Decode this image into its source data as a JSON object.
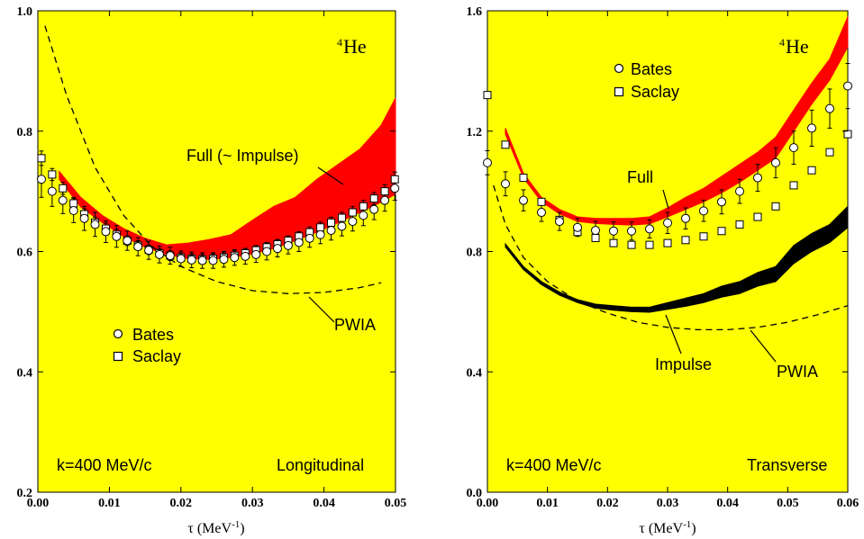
{
  "colors": {
    "background": "#ffff00",
    "band": "#ff0000",
    "impulse": "#000000",
    "text": "#000000"
  },
  "chart_data": [
    {
      "type": "scatter",
      "panel": "left",
      "xlim": [
        0,
        0.05
      ],
      "ylim": [
        0.2,
        1.0
      ],
      "xticks": [
        "0.00",
        "0.01",
        "0.02",
        "0.03",
        "0.04",
        "0.05"
      ],
      "yticks": [
        "0.2",
        "0.4",
        "0.6",
        "0.8",
        "1.0"
      ],
      "xlabel_main": "τ (MeV",
      "xlabel_sup": "-1",
      "xlabel_end": ")",
      "nucleus": {
        "mass": "4",
        "symbol": "He"
      },
      "kinematics_label": "k=400 MeV/c",
      "response_label": "Longitudinal",
      "legend": {
        "bates": "Bates",
        "saclay": "Saclay"
      },
      "band_label": "Full (~ Impulse)",
      "pwia_label": "PWIA",
      "full_band": {
        "x": [
          0.003,
          0.006,
          0.009,
          0.012,
          0.015,
          0.018,
          0.021,
          0.024,
          0.027,
          0.03,
          0.033,
          0.036,
          0.039,
          0.042,
          0.045,
          0.048,
          0.05
        ],
        "upper": [
          0.733,
          0.69,
          0.66,
          0.638,
          0.622,
          0.611,
          0.614,
          0.62,
          0.628,
          0.652,
          0.675,
          0.69,
          0.72,
          0.745,
          0.77,
          0.81,
          0.855
        ],
        "lower": [
          0.72,
          0.674,
          0.648,
          0.625,
          0.607,
          0.595,
          0.588,
          0.587,
          0.59,
          0.596,
          0.605,
          0.618,
          0.632,
          0.648,
          0.665,
          0.682,
          0.695
        ]
      },
      "pwia": {
        "x": [
          0.001,
          0.004,
          0.008,
          0.012,
          0.016,
          0.02,
          0.025,
          0.03,
          0.035,
          0.04,
          0.045,
          0.048
        ],
        "y": [
          0.975,
          0.86,
          0.74,
          0.66,
          0.608,
          0.575,
          0.55,
          0.535,
          0.53,
          0.532,
          0.54,
          0.548
        ]
      },
      "bates": {
        "x": [
          0.0005,
          0.002,
          0.0035,
          0.005,
          0.0065,
          0.008,
          0.0095,
          0.011,
          0.0125,
          0.014,
          0.0155,
          0.017,
          0.0185,
          0.02,
          0.0215,
          0.023,
          0.0245,
          0.026,
          0.0275,
          0.029,
          0.0305,
          0.032,
          0.0335,
          0.035,
          0.0365,
          0.038,
          0.0395,
          0.041,
          0.0425,
          0.044,
          0.0455,
          0.047,
          0.0485,
          0.0499
        ],
        "y": [
          0.72,
          0.7,
          0.685,
          0.668,
          0.655,
          0.645,
          0.633,
          0.625,
          0.618,
          0.608,
          0.602,
          0.595,
          0.593,
          0.588,
          0.586,
          0.585,
          0.585,
          0.587,
          0.59,
          0.592,
          0.595,
          0.6,
          0.605,
          0.61,
          0.615,
          0.622,
          0.628,
          0.635,
          0.642,
          0.65,
          0.66,
          0.67,
          0.685,
          0.705
        ],
        "err": [
          0.03,
          0.025,
          0.022,
          0.02,
          0.02,
          0.02,
          0.018,
          0.018,
          0.016,
          0.015,
          0.015,
          0.014,
          0.014,
          0.013,
          0.013,
          0.013,
          0.013,
          0.013,
          0.013,
          0.013,
          0.013,
          0.014,
          0.014,
          0.014,
          0.015,
          0.015,
          0.015,
          0.016,
          0.016,
          0.016,
          0.017,
          0.017,
          0.018,
          0.02
        ]
      },
      "saclay": {
        "x": [
          0.0005,
          0.002,
          0.0035,
          0.005,
          0.0065,
          0.008,
          0.0095,
          0.011,
          0.0125,
          0.014,
          0.0155,
          0.017,
          0.0185,
          0.02,
          0.0215,
          0.023,
          0.0245,
          0.026,
          0.0275,
          0.029,
          0.0305,
          0.032,
          0.0335,
          0.035,
          0.0365,
          0.038,
          0.0395,
          0.041,
          0.0425,
          0.044,
          0.0455,
          0.047,
          0.0485,
          0.0499
        ],
        "y": [
          0.755,
          0.728,
          0.705,
          0.68,
          0.662,
          0.648,
          0.638,
          0.628,
          0.618,
          0.61,
          0.603,
          0.597,
          0.593,
          0.59,
          0.588,
          0.587,
          0.588,
          0.59,
          0.593,
          0.597,
          0.602,
          0.607,
          0.612,
          0.618,
          0.625,
          0.632,
          0.64,
          0.648,
          0.656,
          0.665,
          0.675,
          0.688,
          0.7,
          0.72
        ],
        "err": [
          0.012,
          0.01,
          0.01,
          0.01,
          0.009,
          0.009,
          0.009,
          0.009,
          0.008,
          0.008,
          0.008,
          0.008,
          0.008,
          0.008,
          0.008,
          0.008,
          0.008,
          0.008,
          0.008,
          0.008,
          0.008,
          0.008,
          0.008,
          0.008,
          0.008,
          0.009,
          0.009,
          0.009,
          0.009,
          0.01,
          0.01,
          0.01,
          0.011,
          0.012
        ]
      }
    },
    {
      "type": "scatter",
      "panel": "right",
      "xlim": [
        0,
        0.06
      ],
      "ylim": [
        0.0,
        1.6
      ],
      "xticks": [
        "0.00",
        "0.01",
        "0.02",
        "0.03",
        "0.04",
        "0.05",
        "0.06"
      ],
      "yticks": [
        "0.0",
        "0.4",
        "0.8",
        "1.2",
        "1.6"
      ],
      "xlabel_main": "τ (MeV",
      "xlabel_sup": "-1",
      "xlabel_end": ")",
      "nucleus": {
        "mass": "4",
        "symbol": "He"
      },
      "kinematics_label": "k=400 MeV/c",
      "response_label": "Transverse",
      "legend": {
        "bates": "Bates",
        "saclay": "Saclay"
      },
      "band_label": "Full",
      "impulse_label": "Impulse",
      "pwia_label": "PWIA",
      "full_band": {
        "x": [
          0.003,
          0.006,
          0.009,
          0.012,
          0.015,
          0.018,
          0.021,
          0.024,
          0.027,
          0.03,
          0.033,
          0.036,
          0.039,
          0.042,
          0.045,
          0.048,
          0.051,
          0.054,
          0.057,
          0.06
        ],
        "upper": [
          1.21,
          1.06,
          0.98,
          0.94,
          0.915,
          0.91,
          0.91,
          0.91,
          0.915,
          0.945,
          0.98,
          1.01,
          1.05,
          1.09,
          1.13,
          1.18,
          1.27,
          1.36,
          1.44,
          1.58
        ],
        "lower": [
          1.19,
          1.045,
          0.965,
          0.925,
          0.9,
          0.893,
          0.89,
          0.888,
          0.892,
          0.915,
          0.94,
          0.965,
          0.995,
          1.03,
          1.07,
          1.11,
          1.2,
          1.29,
          1.37,
          1.48
        ]
      },
      "impulse_band": {
        "x": [
          0.003,
          0.006,
          0.009,
          0.012,
          0.015,
          0.018,
          0.021,
          0.024,
          0.027,
          0.03,
          0.033,
          0.036,
          0.039,
          0.042,
          0.045,
          0.048,
          0.051,
          0.054,
          0.057,
          0.06
        ],
        "upper": [
          0.825,
          0.75,
          0.7,
          0.665,
          0.64,
          0.625,
          0.62,
          0.615,
          0.615,
          0.63,
          0.645,
          0.66,
          0.685,
          0.7,
          0.73,
          0.75,
          0.82,
          0.86,
          0.89,
          0.95
        ],
        "lower": [
          0.815,
          0.74,
          0.69,
          0.655,
          0.63,
          0.612,
          0.605,
          0.6,
          0.598,
          0.608,
          0.618,
          0.63,
          0.648,
          0.66,
          0.685,
          0.7,
          0.76,
          0.8,
          0.83,
          0.88
        ]
      },
      "pwia": {
        "x": [
          0.001,
          0.003,
          0.006,
          0.01,
          0.015,
          0.02,
          0.025,
          0.03,
          0.035,
          0.04,
          0.045,
          0.05,
          0.055,
          0.06
        ],
        "y": [
          1.02,
          0.89,
          0.78,
          0.7,
          0.635,
          0.595,
          0.565,
          0.548,
          0.54,
          0.54,
          0.548,
          0.565,
          0.59,
          0.62
        ]
      },
      "bates": {
        "x": [
          0.0,
          0.003,
          0.006,
          0.009,
          0.012,
          0.015,
          0.018,
          0.021,
          0.024,
          0.027,
          0.03,
          0.033,
          0.036,
          0.039,
          0.042,
          0.045,
          0.048,
          0.051,
          0.054,
          0.057,
          0.06
        ],
        "y": [
          1.095,
          1.025,
          0.97,
          0.93,
          0.9,
          0.88,
          0.87,
          0.868,
          0.868,
          0.875,
          0.895,
          0.91,
          0.935,
          0.965,
          1.0,
          1.045,
          1.095,
          1.145,
          1.21,
          1.275,
          1.35
        ],
        "err": [
          0.04,
          0.04,
          0.035,
          0.03,
          0.03,
          0.03,
          0.03,
          0.03,
          0.03,
          0.03,
          0.035,
          0.035,
          0.035,
          0.04,
          0.04,
          0.045,
          0.05,
          0.055,
          0.06,
          0.065,
          0.075
        ]
      },
      "saclay": {
        "x": [
          0.0,
          0.003,
          0.006,
          0.009,
          0.012,
          0.015,
          0.018,
          0.021,
          0.024,
          0.027,
          0.03,
          0.033,
          0.036,
          0.039,
          0.042,
          0.045,
          0.048,
          0.051,
          0.054,
          0.057,
          0.06
        ],
        "y": [
          1.32,
          1.155,
          1.045,
          0.965,
          0.905,
          0.865,
          0.845,
          0.828,
          0.822,
          0.822,
          0.828,
          0.838,
          0.85,
          0.868,
          0.89,
          0.915,
          0.95,
          1.02,
          1.07,
          1.13,
          1.19
        ],
        "err": [
          0.01,
          0.01,
          0.01,
          0.01,
          0.01,
          0.01,
          0.01,
          0.01,
          0.01,
          0.01,
          0.01,
          0.01,
          0.01,
          0.01,
          0.01,
          0.01,
          0.01,
          0.01,
          0.01,
          0.01,
          0.01
        ]
      }
    }
  ]
}
